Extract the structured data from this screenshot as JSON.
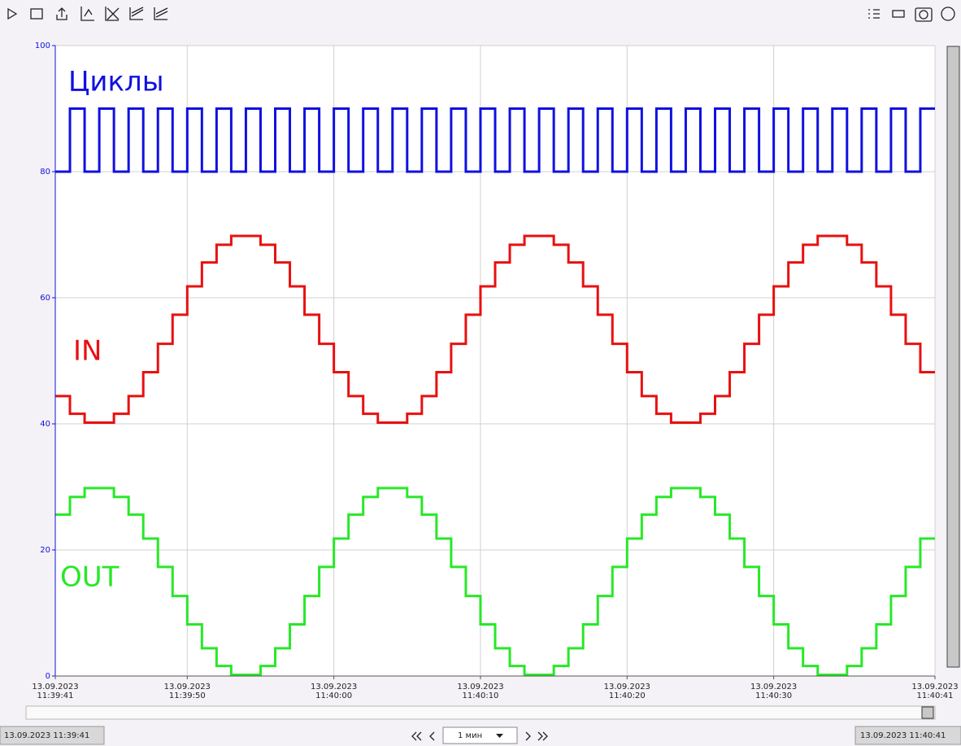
{
  "chart_data": {
    "type": "step",
    "x": [
      "13.09.2023 11:39:41",
      "13.09.2023 11:39:42",
      "13.09.2023 11:39:43",
      "13.09.2023 11:39:44",
      "13.09.2023 11:39:45",
      "13.09.2023 11:39:46",
      "13.09.2023 11:39:47",
      "13.09.2023 11:39:48",
      "13.09.2023 11:39:49",
      "13.09.2023 11:39:50",
      "13.09.2023 11:39:51",
      "13.09.2023 11:39:52",
      "13.09.2023 11:39:53",
      "13.09.2023 11:39:54",
      "13.09.2023 11:39:55",
      "13.09.2023 11:39:56",
      "13.09.2023 11:39:57",
      "13.09.2023 11:39:58",
      "13.09.2023 11:39:59",
      "13.09.2023 11:40:00",
      "13.09.2023 11:40:01",
      "13.09.2023 11:40:02",
      "13.09.2023 11:40:03",
      "13.09.2023 11:40:04",
      "13.09.2023 11:40:05",
      "13.09.2023 11:40:06",
      "13.09.2023 11:40:07",
      "13.09.2023 11:40:08",
      "13.09.2023 11:40:09",
      "13.09.2023 11:40:10",
      "13.09.2023 11:40:11",
      "13.09.2023 11:40:12",
      "13.09.2023 11:40:13",
      "13.09.2023 11:40:14",
      "13.09.2023 11:40:15",
      "13.09.2023 11:40:16",
      "13.09.2023 11:40:17",
      "13.09.2023 11:40:18",
      "13.09.2023 11:40:19",
      "13.09.2023 11:40:20",
      "13.09.2023 11:40:21",
      "13.09.2023 11:40:22",
      "13.09.2023 11:40:23",
      "13.09.2023 11:40:24",
      "13.09.2023 11:40:25",
      "13.09.2023 11:40:26",
      "13.09.2023 11:40:27",
      "13.09.2023 11:40:28",
      "13.09.2023 11:40:29",
      "13.09.2023 11:40:30",
      "13.09.2023 11:40:31",
      "13.09.2023 11:40:32",
      "13.09.2023 11:40:33",
      "13.09.2023 11:40:34",
      "13.09.2023 11:40:35",
      "13.09.2023 11:40:36",
      "13.09.2023 11:40:37",
      "13.09.2023 11:40:38",
      "13.09.2023 11:40:39",
      "13.09.2023 11:40:40"
    ],
    "series": [
      {
        "name": "Циклы",
        "color": "#1010e0",
        "values": [
          80,
          90,
          80,
          90,
          80,
          90,
          80,
          90,
          80,
          90,
          80,
          90,
          80,
          90,
          80,
          90,
          80,
          90,
          80,
          90,
          80,
          90,
          80,
          90,
          80,
          90,
          80,
          90,
          80,
          90,
          80,
          90,
          80,
          90,
          80,
          90,
          80,
          90,
          80,
          90,
          80,
          90,
          80,
          90,
          80,
          90,
          80,
          90,
          80,
          90,
          80,
          90,
          80,
          90,
          80,
          90,
          80,
          90,
          80,
          90
        ]
      },
      {
        "name": "IN",
        "color": "#e81010",
        "values": [
          44.4,
          41.6,
          40.2,
          40.2,
          41.6,
          44.4,
          48.2,
          52.7,
          57.3,
          61.8,
          65.6,
          68.4,
          69.8,
          69.8,
          68.4,
          65.6,
          61.8,
          57.3,
          52.7,
          48.2,
          44.4,
          41.6,
          40.2,
          40.2,
          41.6,
          44.4,
          48.2,
          52.7,
          57.3,
          61.8,
          65.6,
          68.4,
          69.8,
          69.8,
          68.4,
          65.6,
          61.8,
          57.3,
          52.7,
          48.2,
          44.4,
          41.6,
          40.2,
          40.2,
          41.6,
          44.4,
          48.2,
          52.7,
          57.3,
          61.8,
          65.6,
          68.4,
          69.8,
          69.8,
          68.4,
          65.6,
          61.8,
          57.3,
          52.7,
          48.2
        ]
      },
      {
        "name": "OUT",
        "color": "#28e828",
        "values": [
          25.6,
          28.4,
          29.8,
          29.8,
          28.4,
          25.6,
          21.8,
          17.3,
          12.7,
          8.2,
          4.4,
          1.6,
          0.2,
          0.2,
          1.6,
          4.4,
          8.2,
          12.7,
          17.3,
          21.8,
          25.6,
          28.4,
          29.8,
          29.8,
          28.4,
          25.6,
          21.8,
          17.3,
          12.7,
          8.2,
          4.4,
          1.6,
          0.2,
          0.2,
          1.6,
          4.4,
          8.2,
          12.7,
          17.3,
          21.8,
          25.6,
          28.4,
          29.8,
          29.8,
          28.4,
          25.6,
          21.8,
          17.3,
          12.7,
          8.2,
          4.4,
          1.6,
          0.2,
          0.2,
          1.6,
          4.4,
          8.2,
          12.7,
          17.3,
          21.8
        ]
      }
    ],
    "xlim": [
      "13.09.2023 11:39:41",
      "13.09.2023 11:40:41"
    ],
    "xticks": [
      "13.09.2023 11:39:41",
      "13.09.2023 11:39:50",
      "13.09.2023 11:40:00",
      "13.09.2023 11:40:10",
      "13.09.2023 11:40:20",
      "13.09.2023 11:40:30",
      "13.09.2023 11:40:41"
    ],
    "ylim": [
      0,
      100
    ],
    "yticks": [
      0,
      20,
      40,
      60,
      80,
      100
    ],
    "grid": true
  },
  "ui": {
    "start": "13.09.2023 11:39:41",
    "end": "13.09.2023 11:40:41",
    "period": "1 мин"
  }
}
